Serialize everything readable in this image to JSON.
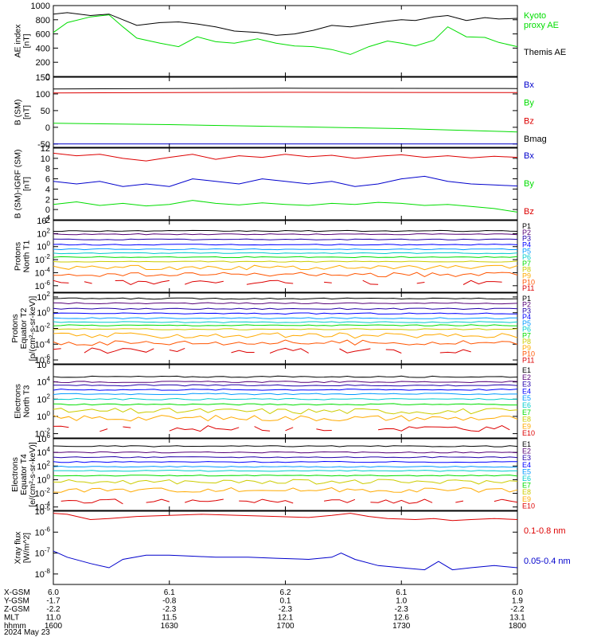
{
  "chart_data": [
    {
      "type": "line",
      "ylabel": [
        "AE index",
        "[nT]"
      ],
      "yticks": [
        "1000",
        "800",
        "600",
        "400",
        "200",
        "0"
      ],
      "ylim": [
        0,
        1000
      ],
      "series": [
        {
          "name": "Kyoto proxy AE",
          "label_lines": [
            "Kyoto",
            "proxy AE"
          ],
          "color": "#00dd00",
          "x": [
            0,
            0.03,
            0.08,
            0.12,
            0.15,
            0.18,
            0.23,
            0.27,
            0.31,
            0.35,
            0.39,
            0.44,
            0.48,
            0.52,
            0.56,
            0.6,
            0.64,
            0.68,
            0.72,
            0.75,
            0.78,
            0.82,
            0.85,
            0.89,
            0.93,
            0.96,
            1.0
          ],
          "values": [
            620,
            760,
            840,
            870,
            700,
            540,
            470,
            420,
            560,
            490,
            470,
            530,
            470,
            430,
            420,
            380,
            310,
            420,
            500,
            470,
            430,
            510,
            700,
            560,
            550,
            480,
            420
          ]
        },
        {
          "name": "Themis AE",
          "label_lines": [
            "Themis AE"
          ],
          "color": "#000000",
          "x": [
            0,
            0.03,
            0.08,
            0.12,
            0.15,
            0.18,
            0.23,
            0.27,
            0.31,
            0.35,
            0.39,
            0.44,
            0.48,
            0.52,
            0.56,
            0.6,
            0.64,
            0.68,
            0.72,
            0.75,
            0.78,
            0.82,
            0.85,
            0.89,
            0.93,
            0.96,
            1.0
          ],
          "values": [
            880,
            900,
            860,
            880,
            800,
            720,
            760,
            770,
            740,
            700,
            640,
            620,
            580,
            600,
            650,
            720,
            700,
            740,
            780,
            800,
            790,
            840,
            860,
            790,
            830,
            810,
            820
          ]
        }
      ]
    },
    {
      "type": "line",
      "ylabel": [
        "B (SM)",
        "[nT]"
      ],
      "yticks": [
        "150",
        "100",
        "50",
        "0",
        "-50"
      ],
      "ylim": [
        -60,
        150
      ],
      "series": [
        {
          "name": "Bx",
          "color": "#0000cc",
          "x": [
            0,
            1
          ],
          "values": [
            -50,
            -50
          ]
        },
        {
          "name": "By",
          "color": "#00dd00",
          "x": [
            0,
            0.25,
            0.5,
            0.75,
            1
          ],
          "values": [
            12,
            8,
            2,
            -4,
            -14
          ]
        },
        {
          "name": "Bz",
          "color": "#dd0000",
          "x": [
            0,
            0.5,
            1
          ],
          "values": [
            103,
            105,
            104
          ]
        },
        {
          "name": "Bmag",
          "color": "#000000",
          "x": [
            0,
            0.5,
            1
          ],
          "values": [
            115,
            117,
            116
          ]
        }
      ]
    },
    {
      "type": "line",
      "ylabel": [
        "B (SM)-IGRF (SM)",
        "[nT]"
      ],
      "yticks": [
        "12",
        "10",
        "8",
        "6",
        "4",
        "2",
        "0",
        "-2"
      ],
      "ylim": [
        -2,
        12
      ],
      "series": [
        {
          "name": "Bx",
          "color": "#0000cc",
          "x": [
            0,
            0.05,
            0.1,
            0.15,
            0.2,
            0.25,
            0.3,
            0.35,
            0.4,
            0.45,
            0.5,
            0.55,
            0.6,
            0.65,
            0.7,
            0.75,
            0.8,
            0.85,
            0.9,
            0.95,
            1.0
          ],
          "values": [
            5.5,
            5.0,
            5.5,
            4.5,
            5.0,
            4.5,
            6.0,
            5.5,
            5.0,
            6.0,
            5.5,
            5.0,
            5.5,
            4.5,
            5.0,
            6.0,
            6.5,
            5.5,
            5.0,
            4.8,
            4.6
          ]
        },
        {
          "name": "By",
          "color": "#00dd00",
          "x": [
            0,
            0.05,
            0.1,
            0.15,
            0.2,
            0.25,
            0.3,
            0.35,
            0.4,
            0.45,
            0.5,
            0.55,
            0.6,
            0.65,
            0.7,
            0.75,
            0.8,
            0.85,
            0.9,
            0.95,
            1.0
          ],
          "values": [
            1.0,
            1.5,
            0.8,
            1.2,
            0.7,
            1.0,
            1.8,
            1.2,
            0.9,
            1.3,
            1.0,
            0.8,
            1.2,
            1.0,
            1.4,
            1.2,
            0.8,
            1.0,
            0.6,
            0.2,
            -0.5
          ]
        },
        {
          "name": "Bz",
          "color": "#dd0000",
          "x": [
            0,
            0.05,
            0.1,
            0.15,
            0.2,
            0.25,
            0.3,
            0.35,
            0.4,
            0.45,
            0.5,
            0.55,
            0.6,
            0.65,
            0.7,
            0.75,
            0.8,
            0.85,
            0.9,
            0.95,
            1.0
          ],
          "values": [
            11.0,
            10.5,
            10.8,
            10.0,
            9.5,
            10.2,
            10.8,
            9.8,
            10.5,
            10.2,
            10.8,
            10.3,
            10.6,
            10.0,
            10.4,
            10.7,
            10.2,
            10.5,
            10.1,
            10.4,
            10.2
          ]
        }
      ]
    },
    {
      "type": "line",
      "log": true,
      "ylabel": [
        "Protons",
        "North T1"
      ],
      "yticks": [
        4,
        2,
        0,
        -2,
        -4,
        -6
      ],
      "ylim": [
        -7,
        4
      ],
      "channels": [
        "P1",
        "P2",
        "P3",
        "P4",
        "P5",
        "P6",
        "P7",
        "P8",
        "P9",
        "P10",
        "P11"
      ],
      "levels": [
        2.4,
        1.9,
        1.1,
        0.3,
        -0.4,
        -1.0,
        -1.6,
        -2.3,
        -3.2,
        -4.3,
        -5.5
      ],
      "colors": [
        "#000000",
        "#550077",
        "#2200aa",
        "#0000ff",
        "#0099ff",
        "#00cccc",
        "#00dd00",
        "#cccc00",
        "#ffaa00",
        "#ff5500",
        "#dd0000"
      ]
    },
    {
      "type": "line",
      "log": true,
      "ylabel": [
        "Protons",
        "Equator T2",
        "[p/(cm²-s-sr-keV)]"
      ],
      "yticks": [
        2,
        0,
        -2,
        -4,
        -6
      ],
      "ylim": [
        -6.5,
        2.5
      ],
      "channels": [
        "P1",
        "P2",
        "P3",
        "P4",
        "P5",
        "P6",
        "P7",
        "P8",
        "P9",
        "P10",
        "P11"
      ],
      "levels": [
        1.8,
        1.2,
        0.5,
        -0.1,
        -0.7,
        -1.2,
        -1.6,
        -2.1,
        -2.9,
        -3.8,
        -4.8
      ],
      "colors": [
        "#000000",
        "#550077",
        "#2200aa",
        "#0000ff",
        "#0099ff",
        "#00cccc",
        "#00dd00",
        "#cccc00",
        "#ffaa00",
        "#ff5500",
        "#dd0000"
      ]
    },
    {
      "type": "line",
      "log": true,
      "ylabel": [
        "Electrons",
        "North T3"
      ],
      "yticks": [
        6,
        4,
        2,
        0,
        -2
      ],
      "ylim": [
        -2.5,
        6
      ],
      "channels": [
        "E1",
        "E2",
        "E3",
        "E4",
        "E5",
        "E6",
        "E7",
        "E8",
        "E9",
        "E10"
      ],
      "levels": [
        4.6,
        4.0,
        3.6,
        3.1,
        2.6,
        2.0,
        1.4,
        0.6,
        -0.2,
        -1.4
      ],
      "colors": [
        "#000000",
        "#550077",
        "#2200aa",
        "#0000ff",
        "#0099ff",
        "#00cccc",
        "#00dd00",
        "#cccc00",
        "#ffaa00",
        "#dd0000"
      ]
    },
    {
      "type": "line",
      "log": true,
      "ylabel": [
        "Electrons",
        "Equator T4",
        "[e/(cm²-s-sr-keV)]"
      ],
      "yticks": [
        6,
        4,
        2,
        0,
        -2,
        -4
      ],
      "ylim": [
        -4.5,
        6
      ],
      "channels": [
        "E1",
        "E2",
        "E3",
        "E4",
        "E5",
        "E6",
        "E7",
        "E8",
        "E9",
        "E10"
      ],
      "levels": [
        4.9,
        4.0,
        3.3,
        2.6,
        1.9,
        1.3,
        0.6,
        -0.3,
        -1.5,
        -3.2
      ],
      "colors": [
        "#000000",
        "#550077",
        "#2200aa",
        "#0000ff",
        "#0099ff",
        "#00cccc",
        "#00dd00",
        "#cccc00",
        "#ffaa00",
        "#dd0000"
      ]
    },
    {
      "type": "line",
      "log": true,
      "ylabel": [
        "Xray flux",
        "[W/m^2]"
      ],
      "yticks": [
        -5,
        -6,
        -7,
        -8
      ],
      "ylim": [
        -8.5,
        -5
      ],
      "series": [
        {
          "name": "0.1-0.8 nm",
          "color": "#dd0000",
          "x": [
            0,
            0.03,
            0.08,
            0.12,
            0.18,
            0.25,
            0.32,
            0.4,
            0.48,
            0.55,
            0.6,
            0.64,
            0.68,
            0.72,
            0.78,
            0.82,
            0.86,
            0.9,
            0.95,
            1.0
          ],
          "values": [
            -5.1,
            -5.15,
            -5.4,
            -5.35,
            -5.25,
            -5.2,
            -5.15,
            -5.2,
            -5.25,
            -5.3,
            -5.2,
            -5.1,
            -5.25,
            -5.35,
            -5.4,
            -5.35,
            -5.45,
            -5.4,
            -5.35,
            -5.4
          ]
        },
        {
          "name": "0.05-0.4 nm",
          "color": "#0000cc",
          "x": [
            0,
            0.03,
            0.08,
            0.12,
            0.15,
            0.2,
            0.25,
            0.3,
            0.35,
            0.42,
            0.48,
            0.55,
            0.6,
            0.62,
            0.65,
            0.7,
            0.75,
            0.8,
            0.83,
            0.86,
            0.9,
            0.95,
            1.0
          ],
          "values": [
            -6.9,
            -7.2,
            -7.5,
            -7.7,
            -7.3,
            -7.1,
            -7.1,
            -7.15,
            -7.2,
            -7.2,
            -7.25,
            -7.3,
            -7.2,
            -7.0,
            -7.3,
            -7.6,
            -7.7,
            -7.8,
            -7.4,
            -7.8,
            -7.7,
            -7.6,
            -7.7
          ]
        }
      ]
    }
  ],
  "time_axis": {
    "rows": [
      {
        "label": "X-GSM",
        "values": [
          "6.0",
          "6.1",
          "6.2",
          "6.1",
          "6.0"
        ]
      },
      {
        "label": "Y-GSM",
        "values": [
          "-1.7",
          "-0.8",
          "0.1",
          "1.0",
          "1.9"
        ]
      },
      {
        "label": "Z-GSM",
        "values": [
          "-2.2",
          "-2.3",
          "-2.3",
          "-2.3",
          "-2.2"
        ]
      },
      {
        "label": "MLT",
        "values": [
          "11.0",
          "11.5",
          "12.1",
          "12.6",
          "13.1"
        ]
      },
      {
        "label": "hhmm",
        "values": [
          "1600",
          "1630",
          "1700",
          "1730",
          "1800"
        ]
      }
    ],
    "date": "2024 May 23"
  }
}
